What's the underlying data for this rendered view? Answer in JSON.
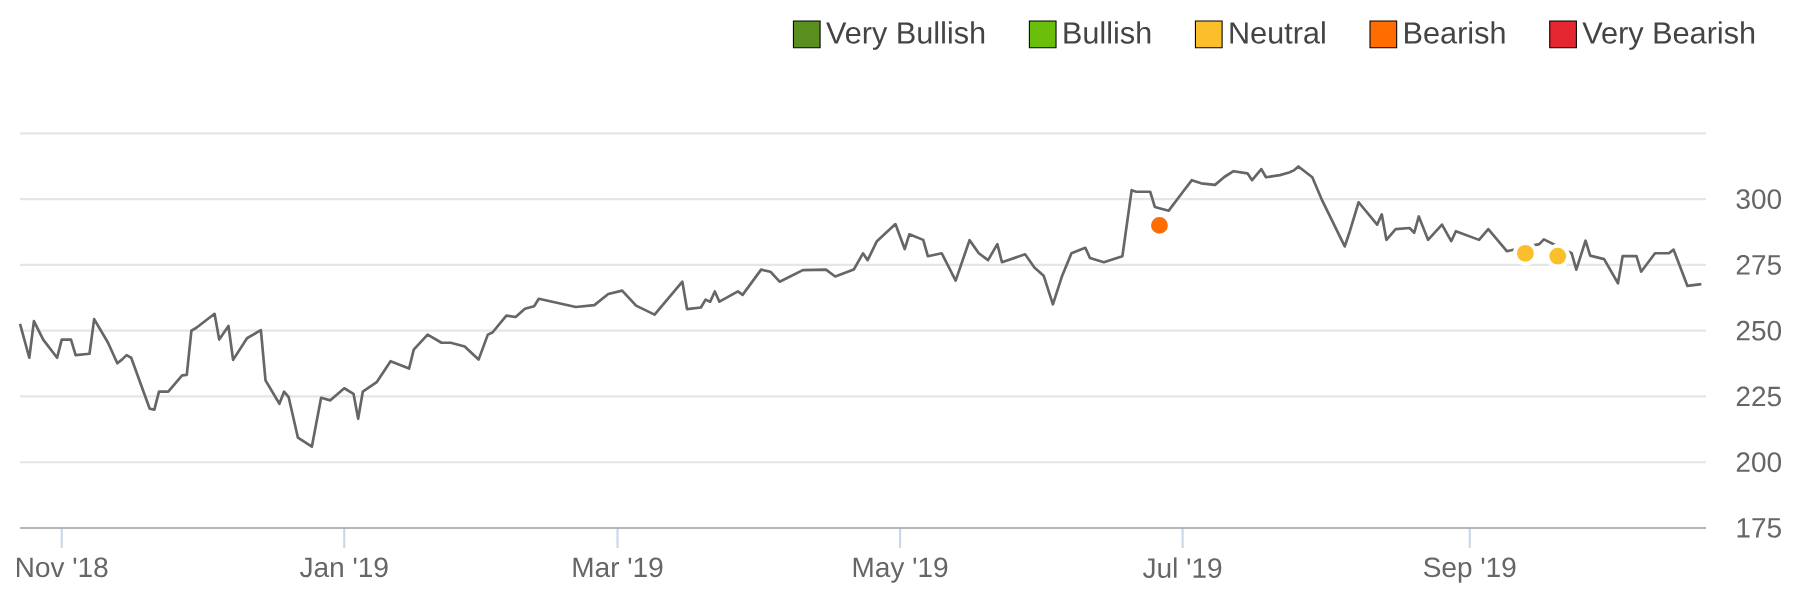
{
  "chart_data": {
    "type": "line",
    "xlim": [
      "2018-10-23",
      "2019-10-22"
    ],
    "xticks": [
      {
        "value": "2018-11-01",
        "label": "Nov '18"
      },
      {
        "value": "2019-01-01",
        "label": "Jan '19"
      },
      {
        "value": "2019-03-01",
        "label": "Mar '19"
      },
      {
        "value": "2019-05-01",
        "label": "May '19"
      },
      {
        "value": "2019-07-01",
        "label": "Jul '19"
      },
      {
        "value": "2019-09-01",
        "label": "Sep '19"
      }
    ],
    "ylim": [
      175,
      325
    ],
    "yticks": [
      175,
      200,
      225,
      250,
      275,
      300,
      {
        "value": 325,
        "label": null
      }
    ],
    "grid": "y",
    "legend": "top right",
    "series": [
      {
        "color": "#666666",
        "x": [
          "2018-10-23",
          "2018-10-25",
          "2018-10-26",
          "2018-10-28",
          "2018-10-31",
          "2018-11-01",
          "2018-11-03",
          "2018-11-04",
          "2018-11-07",
          "2018-11-08",
          "2018-11-11",
          "2018-11-13",
          "2018-11-14",
          "2018-11-15",
          "2018-11-16",
          "2018-11-20",
          "2018-11-21",
          "2018-11-22",
          "2018-11-24",
          "2018-11-27",
          "2018-11-28",
          "2018-11-29",
          "2018-11-30",
          "2018-12-04",
          "2018-12-05",
          "2018-12-07",
          "2018-12-08",
          "2018-12-11",
          "2018-12-14",
          "2018-12-15",
          "2018-12-18",
          "2018-12-19",
          "2018-12-20",
          "2018-12-22",
          "2018-12-25",
          "2018-12-27",
          "2018-12-29",
          "2019-01-01",
          "2019-01-03",
          "2019-01-04",
          "2019-01-05",
          "2019-01-08",
          "2019-01-11",
          "2019-01-15",
          "2019-01-16",
          "2019-01-19",
          "2019-01-22",
          "2019-01-24",
          "2019-01-27",
          "2019-01-30",
          "2019-02-01",
          "2019-02-02",
          "2019-02-05",
          "2019-02-07",
          "2019-02-09",
          "2019-02-11",
          "2019-02-12",
          "2019-02-20",
          "2019-02-24",
          "2019-02-27",
          "2019-03-02",
          "2019-03-05",
          "2019-03-09",
          "2019-03-15",
          "2019-03-16",
          "2019-03-19",
          "2019-03-20",
          "2019-03-21",
          "2019-03-22",
          "2019-03-23",
          "2019-03-27",
          "2019-03-28",
          "2019-04-01",
          "2019-04-03",
          "2019-04-05",
          "2019-04-10",
          "2019-04-15",
          "2019-04-17",
          "2019-04-21",
          "2019-04-23",
          "2019-04-24",
          "2019-04-26",
          "2019-04-30",
          "2019-05-02",
          "2019-05-03",
          "2019-05-06",
          "2019-05-07",
          "2019-05-10",
          "2019-05-13",
          "2019-05-16",
          "2019-05-18",
          "2019-05-20",
          "2019-05-22",
          "2019-05-23",
          "2019-05-28",
          "2019-05-30",
          "2019-06-01",
          "2019-06-03",
          "2019-06-05",
          "2019-06-07",
          "2019-06-10",
          "2019-06-11",
          "2019-06-14",
          "2019-06-18",
          "2019-06-20",
          "2019-06-21",
          "2019-06-24",
          "2019-06-25",
          "2019-06-28",
          "2019-07-01",
          "2019-07-03",
          "2019-07-05",
          "2019-07-08",
          "2019-07-10",
          "2019-07-12",
          "2019-07-15",
          "2019-07-16",
          "2019-07-18",
          "2019-07-19",
          "2019-07-22",
          "2019-07-24",
          "2019-07-25",
          "2019-07-26",
          "2019-07-29",
          "2019-07-31",
          "2019-08-05",
          "2019-08-06",
          "2019-08-08",
          "2019-08-12",
          "2019-08-13",
          "2019-08-14",
          "2019-08-16",
          "2019-08-19",
          "2019-08-20",
          "2019-08-21",
          "2019-08-23",
          "2019-08-26",
          "2019-08-28",
          "2019-08-29",
          "2019-09-03",
          "2019-09-05",
          "2019-09-09",
          "2019-09-16",
          "2019-09-17",
          "2019-09-23",
          "2019-09-24",
          "2019-09-26",
          "2019-09-27",
          "2019-09-30",
          "2019-10-03",
          "2019-10-04",
          "2019-10-07",
          "2019-10-08",
          "2019-10-11",
          "2019-10-14",
          "2019-10-15",
          "2019-10-18",
          "2019-10-21"
        ],
        "values": [
          252.6,
          239.7,
          253.6,
          246.6,
          239.7,
          246.6,
          246.6,
          240.7,
          241.2,
          254.4,
          245.4,
          237.6,
          239,
          240.7,
          239.7,
          220.3,
          220,
          226.8,
          226.8,
          233,
          233.2,
          250,
          251,
          256.4,
          246.6,
          251.8,
          238.9,
          247.1,
          250.2,
          231.1,
          222.2,
          226.8,
          224.7,
          209.3,
          205.9,
          224.5,
          223.5,
          228.1,
          226,
          216.5,
          226.8,
          230.4,
          238.4,
          235.6,
          242.8,
          248.5,
          245.4,
          245.4,
          244,
          239,
          248.5,
          249.3,
          255.7,
          255.2,
          258.3,
          259.3,
          262.1,
          259,
          259.7,
          263.9,
          265.2,
          259.5,
          256.1,
          268.6,
          258.2,
          258.8,
          261.8,
          261,
          264.9,
          261,
          264.9,
          263.6,
          273.2,
          272.4,
          268.6,
          273,
          273.2,
          270.6,
          273.2,
          279.4,
          276.8,
          284,
          290.5,
          281,
          286.6,
          284.5,
          278.3,
          279.4,
          269,
          284.4,
          279.4,
          276.8,
          282.9,
          276,
          279,
          274,
          270.9,
          260,
          270.9,
          279.4,
          281.5,
          277.6,
          276,
          278.3,
          303.4,
          302.8,
          302.8,
          297,
          295.6,
          302.6,
          307.2,
          306,
          305.4,
          308.4,
          310.6,
          309.8,
          307.2,
          311.4,
          308.3,
          309.1,
          310.1,
          310.9,
          312.4,
          308.3,
          300,
          282,
          287.2,
          298.8,
          290.3,
          294.2,
          284.5,
          288.6,
          289,
          287.2,
          293.4,
          284.5,
          290.3,
          284,
          287.8,
          284.5,
          288.6,
          280.2,
          282.9,
          284.7,
          279.4,
          273.2,
          284.2,
          278.5,
          277.2,
          268,
          278.3,
          278.3,
          272.4,
          279.4,
          279.4,
          280.8,
          267,
          267.7
        ]
      },
      {
        "type": "scatter",
        "name": "Very Bullish",
        "color": "#5a8f1e"
      },
      {
        "type": "scatter",
        "name": "Bullish",
        "color": "#6abf0a"
      },
      {
        "type": "scatter",
        "name": "Neutral",
        "color": "#fbbf2c",
        "x": [
          "2019-09-13",
          "2019-09-20"
        ],
        "values": [
          279.4,
          278.3
        ]
      },
      {
        "type": "scatter",
        "name": "Bearish",
        "color": "#ff6d00",
        "x": [
          "2019-06-26"
        ],
        "values": [
          290
        ]
      },
      {
        "type": "scatter",
        "name": "Very Bearish",
        "color": "#e3262f"
      }
    ]
  }
}
